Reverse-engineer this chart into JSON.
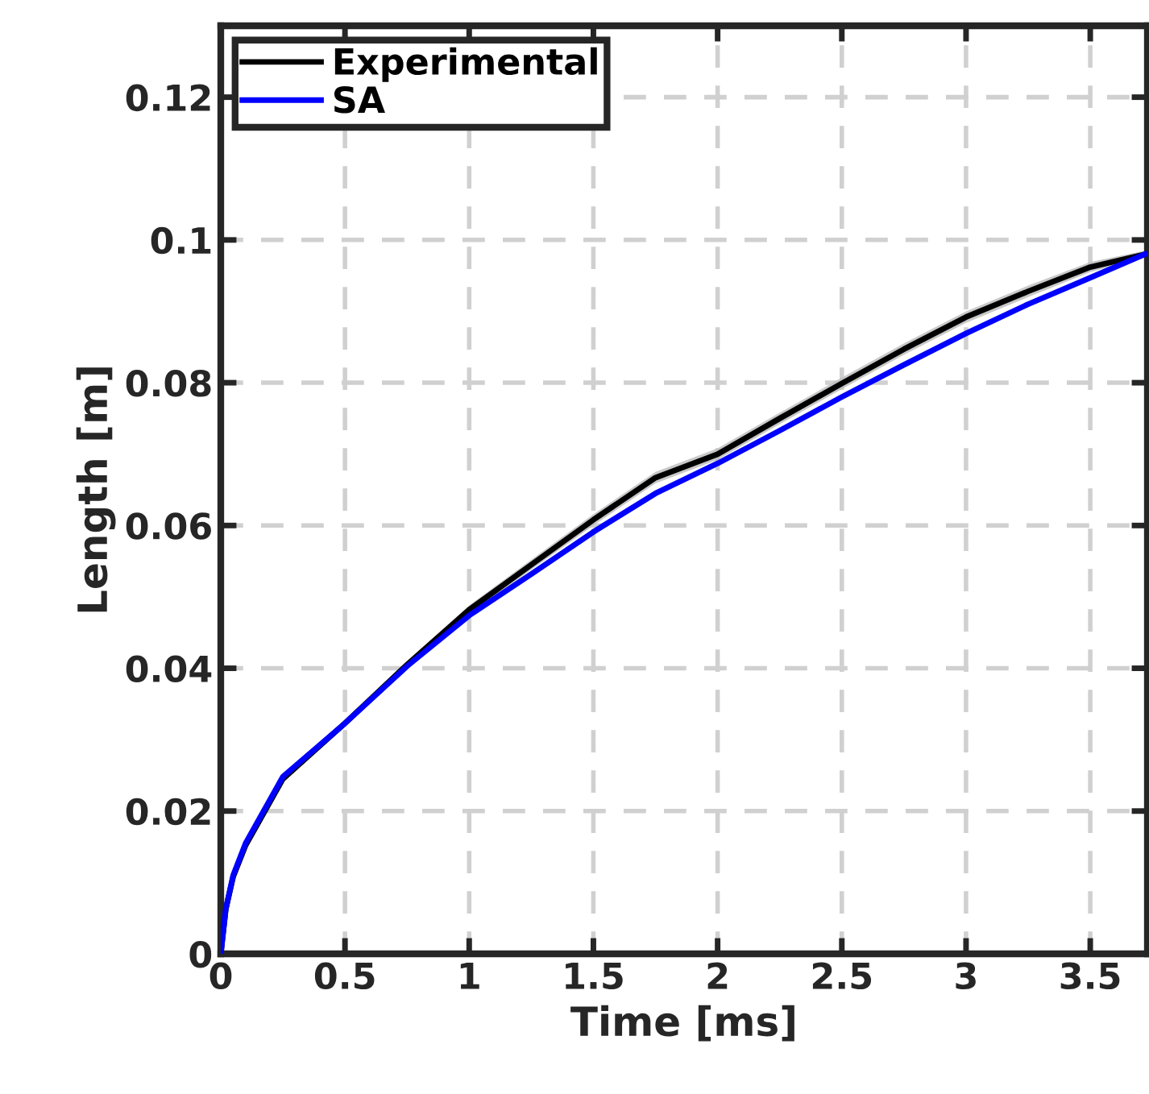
{
  "chart_data": {
    "type": "line",
    "xlabel": "Time [ms]",
    "ylabel": "Length [m]",
    "xlim": [
      0,
      3.73
    ],
    "ylim": [
      0,
      0.13
    ],
    "xticks": [
      0,
      0.5,
      1,
      1.5,
      2,
      2.5,
      3,
      3.5
    ],
    "yticks": [
      0,
      0.02,
      0.04,
      0.06,
      0.08,
      0.1,
      0.12
    ],
    "grid": true,
    "legend": "top left",
    "line_style": "solid",
    "marker": "none",
    "series": [
      {
        "name": "Experimental",
        "color": "#000000",
        "x": [
          0,
          0.02,
          0.05,
          0.1,
          0.25,
          0.5,
          0.75,
          1,
          1.25,
          1.5,
          1.75,
          2,
          2.25,
          2.5,
          2.75,
          3,
          3.25,
          3.5,
          3.72
        ],
        "values": [
          0,
          0.0062,
          0.0108,
          0.0152,
          0.0245,
          0.0323,
          0.0405,
          0.0482,
          0.0545,
          0.0608,
          0.0667,
          0.07,
          0.075,
          0.0799,
          0.0847,
          0.0892,
          0.0928,
          0.0962,
          0.098
        ],
        "lower": [
          0,
          0.0058,
          0.0103,
          0.0147,
          0.024,
          0.0318,
          0.04,
          0.0476,
          0.0538,
          0.06,
          0.0659,
          0.0692,
          0.0742,
          0.0791,
          0.0839,
          0.0884,
          0.092,
          0.0955,
          0.0975
        ],
        "upper": [
          0,
          0.0066,
          0.0113,
          0.0157,
          0.025,
          0.0328,
          0.041,
          0.0488,
          0.0552,
          0.0616,
          0.0675,
          0.0708,
          0.0758,
          0.0807,
          0.0855,
          0.09,
          0.0936,
          0.0969,
          0.0985
        ]
      },
      {
        "name": "SA",
        "color": "#0000ff",
        "x": [
          0,
          0.02,
          0.05,
          0.1,
          0.25,
          0.5,
          0.75,
          1,
          1.25,
          1.5,
          1.75,
          2,
          2.25,
          2.5,
          2.75,
          3,
          3.25,
          3.5,
          3.72
        ],
        "values": [
          0,
          0.0063,
          0.011,
          0.0155,
          0.0248,
          0.0323,
          0.0403,
          0.0474,
          0.0532,
          0.0591,
          0.0645,
          0.0687,
          0.0733,
          0.078,
          0.0825,
          0.0869,
          0.091,
          0.0947,
          0.098
        ]
      }
    ]
  }
}
